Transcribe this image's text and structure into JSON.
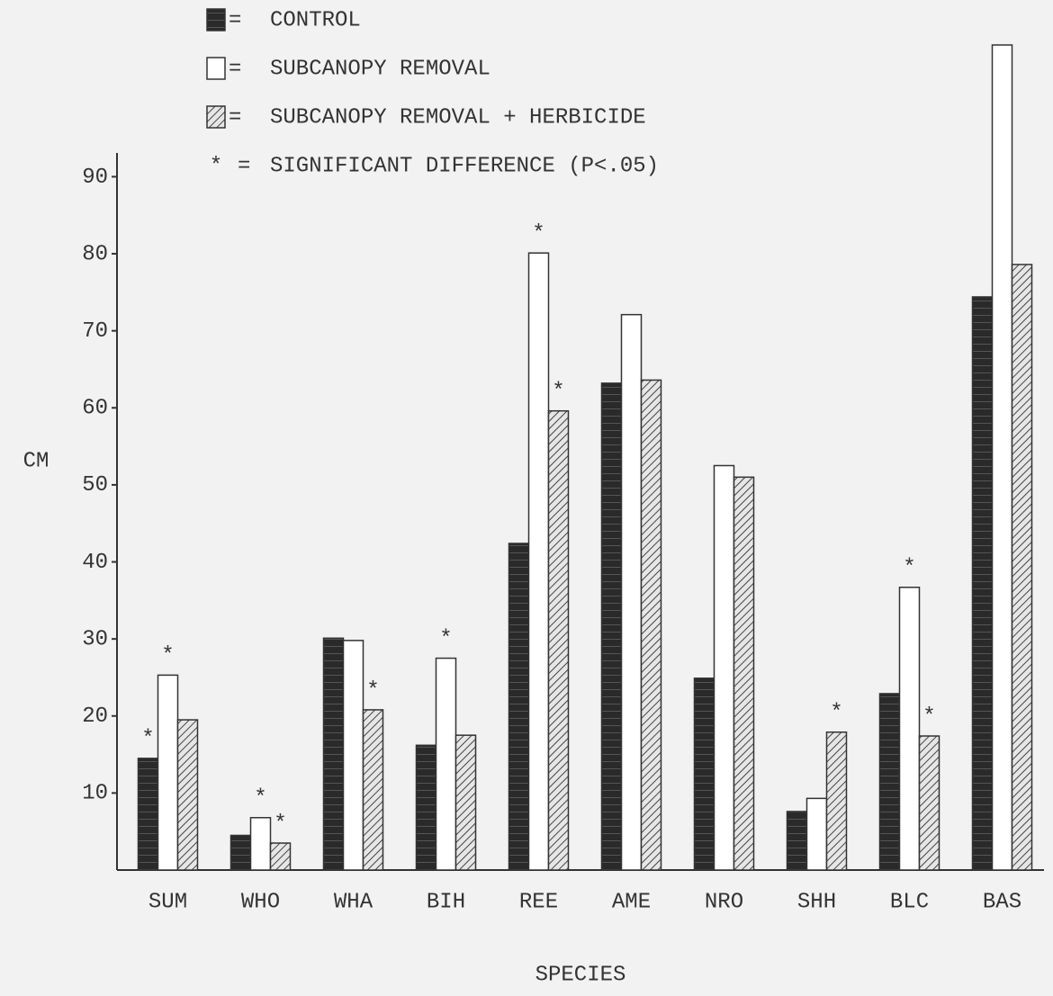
{
  "chart_data": {
    "type": "bar",
    "y_label": "CM",
    "x_label": "SPECIES",
    "categories": [
      "SUM",
      "WHO",
      "WHA",
      "BIH",
      "REE",
      "AME",
      "NRO",
      "SHH",
      "BLC",
      "BAS"
    ],
    "series": [
      {
        "name": "CONTROL",
        "color": "#2a2a2a",
        "pattern": "solid",
        "values": [
          14.5,
          4.5,
          30.1,
          16.2,
          42.4,
          63.2,
          24.9,
          7.6,
          22.9,
          74.4
        ],
        "significant": [
          true,
          false,
          false,
          false,
          false,
          false,
          false,
          false,
          false,
          false
        ]
      },
      {
        "name": "SUBCANOPY REMOVAL",
        "color": "#ffffff",
        "pattern": "none",
        "values": [
          25.3,
          6.8,
          29.8,
          27.5,
          80.1,
          72.1,
          52.5,
          9.3,
          36.7,
          107.1
        ],
        "significant": [
          true,
          true,
          false,
          true,
          true,
          false,
          false,
          false,
          true,
          false
        ]
      },
      {
        "name": "SUBCANOPY REMOVAL + HERBICIDE",
        "color": "#e6e6e6",
        "pattern": "hatch",
        "values": [
          19.5,
          3.5,
          20.8,
          17.5,
          59.6,
          63.6,
          51.0,
          17.9,
          17.4,
          78.6
        ],
        "significant": [
          false,
          true,
          true,
          false,
          true,
          false,
          false,
          true,
          true,
          false
        ]
      }
    ],
    "legend_separator": "=",
    "significance_note": {
      "symbol": "*",
      "label": "SIGNIFICANT DIFFERENCE (P<.05)"
    },
    "ylim": [
      0,
      108
    ],
    "yticks": [
      10,
      20,
      30,
      40,
      50,
      60,
      70,
      80,
      90
    ]
  }
}
